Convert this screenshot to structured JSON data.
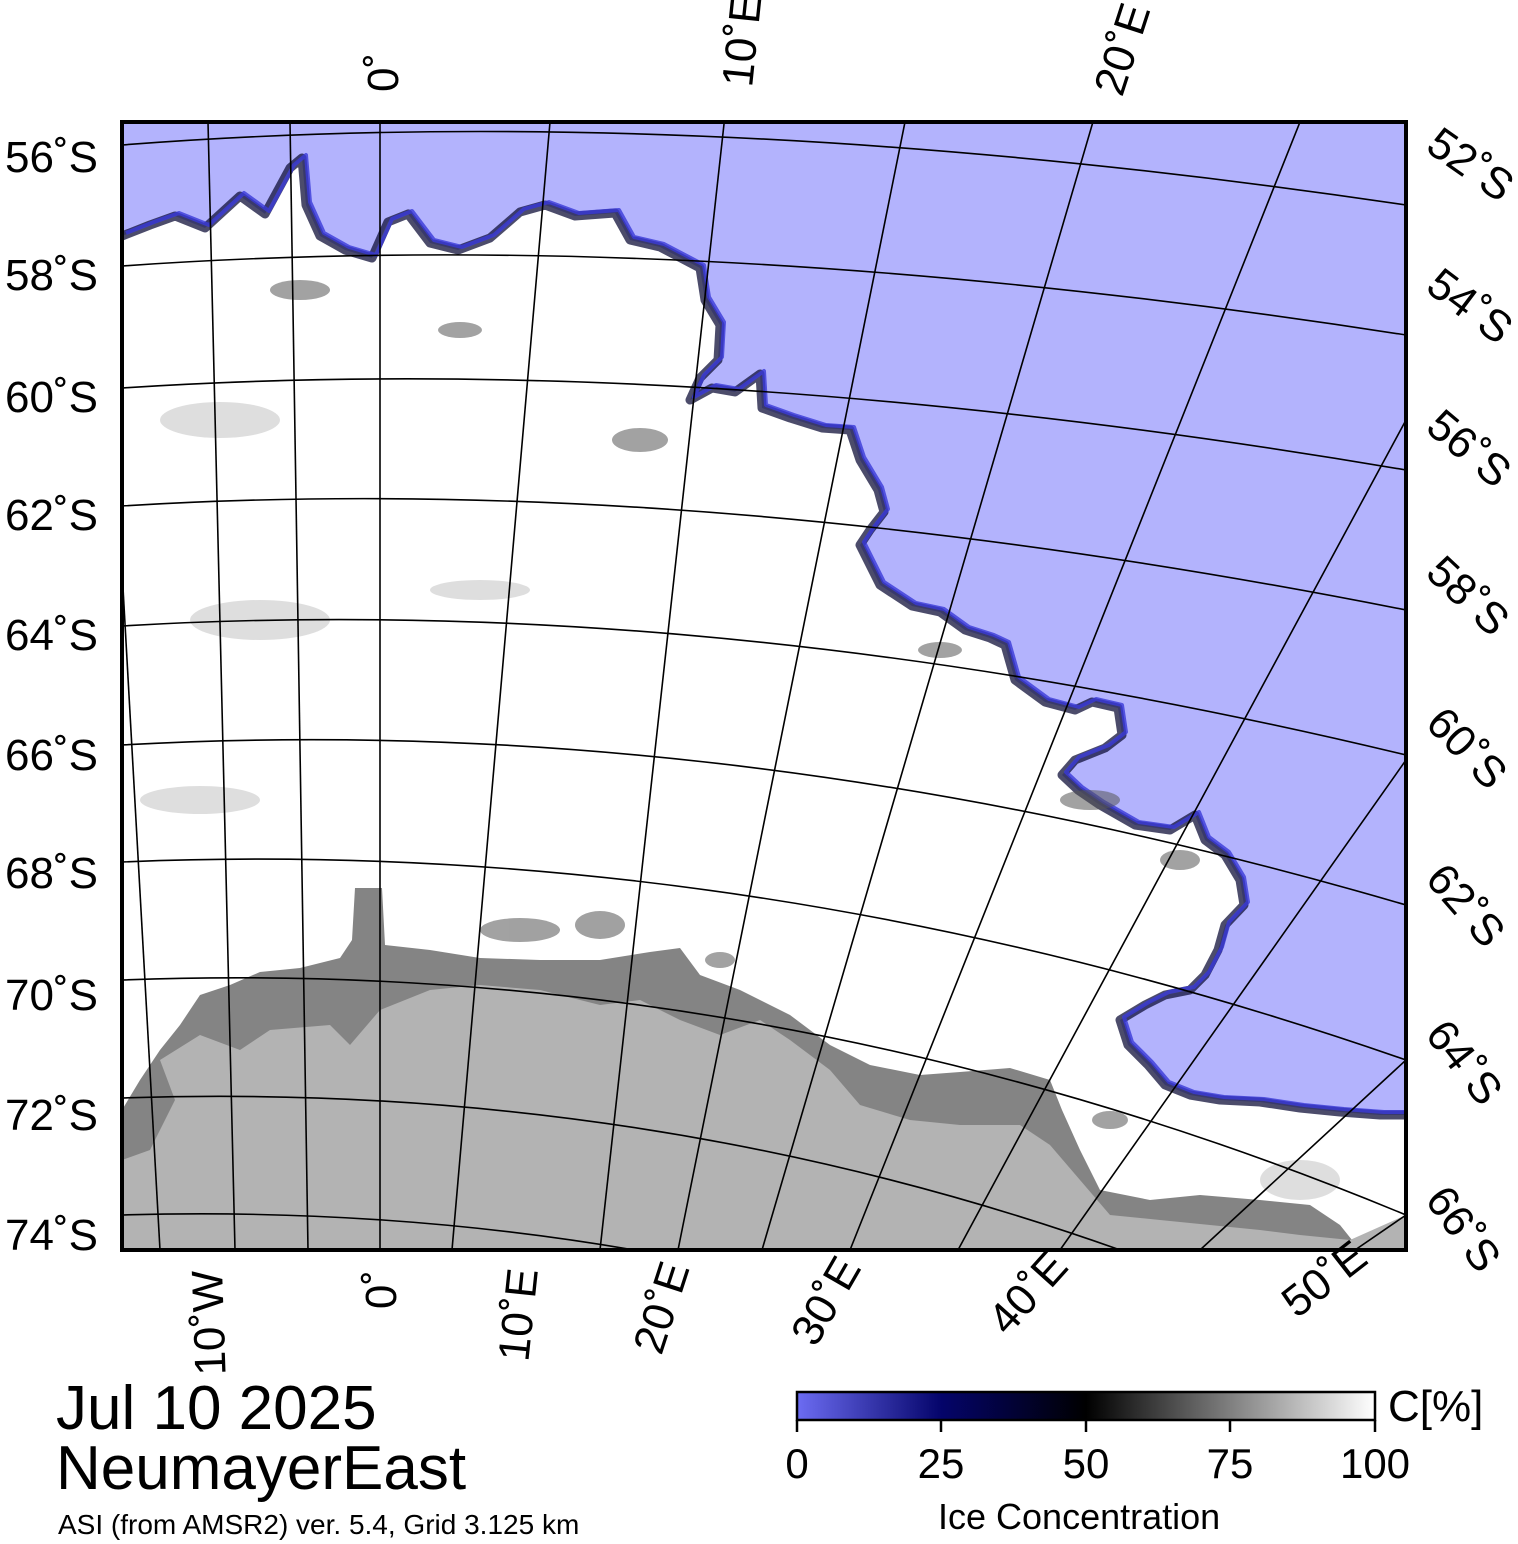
{
  "map": {
    "date": "Jul 10 2025",
    "region": "NeumayerEast",
    "product_note": "ASI (from AMSR2) ver. 5.4,  Grid 3.125 km",
    "colors": {
      "open_water": "#b3b3fd",
      "ice_full": "#ffffff",
      "ice_shelf": "#848484",
      "land": "#b3b3b3",
      "ice_edge": "#10103a",
      "graticule": "#000000"
    },
    "latitude_labels_left": [
      "56˚S",
      "58˚S",
      "60˚S",
      "62˚S",
      "64˚S",
      "66˚S",
      "68˚S",
      "70˚S",
      "72˚S",
      "74˚S"
    ],
    "latitude_labels_right": [
      "52˚S",
      "54˚S",
      "56˚S",
      "58˚S",
      "60˚S",
      "62˚S",
      "64˚S",
      "66˚S"
    ],
    "longitude_labels_top": [
      "0˚",
      "10˚E",
      "20˚E"
    ],
    "longitude_labels_bottom": [
      "10˚W",
      "0˚",
      "10˚E",
      "20˚E",
      "30˚E",
      "40˚E",
      "50˚E"
    ]
  },
  "colorbar": {
    "unit": "C[%]",
    "title": "Ice Concentration",
    "ticks": [
      "0",
      "25",
      "50",
      "75",
      "100"
    ],
    "stops": [
      {
        "value": 0,
        "color": "#6c6cf2"
      },
      {
        "value": 25,
        "color": "#04046a"
      },
      {
        "value": 50,
        "color": "#000000"
      },
      {
        "value": 100,
        "color": "#ffffff"
      }
    ]
  }
}
